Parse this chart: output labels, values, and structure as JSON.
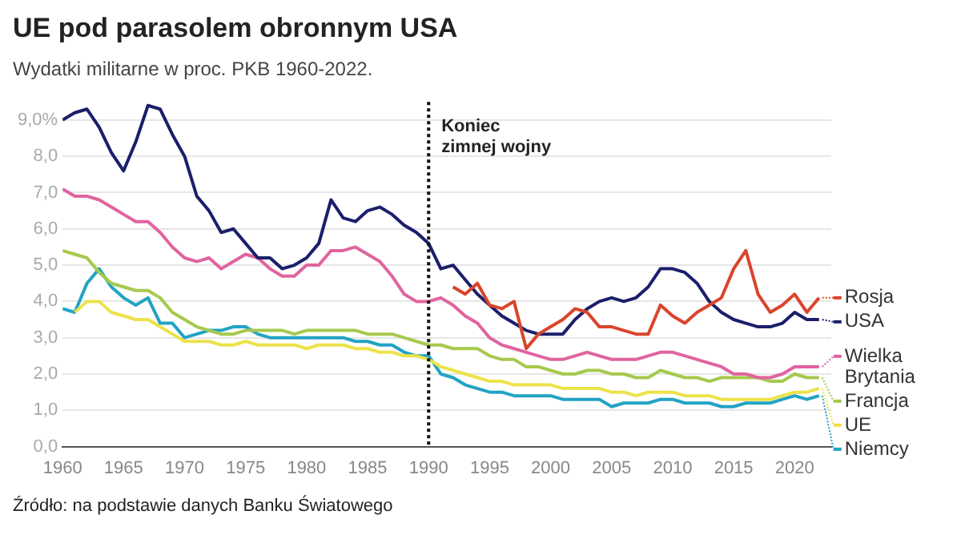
{
  "chart_data": {
    "type": "line",
    "title": "UE pod parasolem obronnym USA",
    "subtitle": "Wydatki militarne w proc. PKB 1960-2022.",
    "annotations": [
      "Źródło: na podstawie danych Banku Światowego"
    ],
    "x": [
      1960,
      1961,
      1962,
      1963,
      1964,
      1965,
      1966,
      1967,
      1968,
      1969,
      1970,
      1971,
      1972,
      1973,
      1974,
      1975,
      1976,
      1977,
      1978,
      1979,
      1980,
      1981,
      1982,
      1983,
      1984,
      1985,
      1986,
      1987,
      1988,
      1989,
      1990,
      1991,
      1992,
      1993,
      1994,
      1995,
      1996,
      1997,
      1998,
      1999,
      2000,
      2001,
      2002,
      2003,
      2004,
      2005,
      2006,
      2007,
      2008,
      2009,
      2010,
      2011,
      2012,
      2013,
      2014,
      2015,
      2016,
      2017,
      2018,
      2019,
      2020,
      2021,
      2022
    ],
    "series": [
      {
        "name": "Rosja",
        "color": "#d9452b",
        "values": [
          null,
          null,
          null,
          null,
          null,
          null,
          null,
          null,
          null,
          null,
          null,
          null,
          null,
          null,
          null,
          null,
          null,
          null,
          null,
          null,
          null,
          null,
          null,
          null,
          null,
          null,
          null,
          null,
          null,
          null,
          null,
          null,
          4.4,
          4.2,
          4.5,
          3.9,
          3.8,
          4.0,
          2.7,
          3.1,
          3.3,
          3.5,
          3.8,
          3.7,
          3.3,
          3.3,
          3.2,
          3.1,
          3.1,
          3.9,
          3.6,
          3.4,
          3.7,
          3.9,
          4.1,
          4.9,
          5.4,
          4.2,
          3.7,
          3.9,
          4.2,
          3.7,
          4.1
        ]
      },
      {
        "name": "USA",
        "color": "#1b1f6b",
        "values": [
          9.0,
          9.2,
          9.3,
          8.8,
          8.1,
          7.6,
          8.4,
          9.4,
          9.3,
          8.6,
          8.0,
          6.9,
          6.5,
          5.9,
          6.0,
          5.6,
          5.2,
          5.2,
          4.9,
          5.0,
          5.2,
          5.6,
          6.8,
          6.3,
          6.2,
          6.5,
          6.6,
          6.4,
          6.1,
          5.9,
          5.6,
          4.9,
          5.0,
          4.6,
          4.2,
          3.9,
          3.6,
          3.4,
          3.2,
          3.1,
          3.1,
          3.1,
          3.5,
          3.8,
          4.0,
          4.1,
          4.0,
          4.1,
          4.4,
          4.9,
          4.9,
          4.8,
          4.5,
          4.0,
          3.7,
          3.5,
          3.4,
          3.3,
          3.3,
          3.4,
          3.7,
          3.5,
          3.5
        ]
      },
      {
        "name": "Wielka Brytania",
        "color": "#e0649f",
        "values": [
          7.1,
          6.9,
          6.9,
          6.8,
          6.6,
          6.4,
          6.2,
          6.2,
          5.9,
          5.5,
          5.2,
          5.1,
          5.2,
          4.9,
          5.1,
          5.3,
          5.2,
          4.9,
          4.7,
          4.7,
          5.0,
          5.0,
          5.4,
          5.4,
          5.5,
          5.3,
          5.1,
          4.7,
          4.2,
          4.0,
          4.0,
          4.1,
          3.9,
          3.6,
          3.4,
          3.0,
          2.8,
          2.7,
          2.6,
          2.5,
          2.4,
          2.4,
          2.5,
          2.6,
          2.5,
          2.4,
          2.4,
          2.4,
          2.5,
          2.6,
          2.6,
          2.5,
          2.4,
          2.3,
          2.2,
          2.0,
          2.0,
          1.9,
          1.9,
          2.0,
          2.2,
          2.2,
          2.2
        ]
      },
      {
        "name": "Francja",
        "color": "#a6c94e",
        "values": [
          5.4,
          5.3,
          5.2,
          4.8,
          4.5,
          4.4,
          4.3,
          4.3,
          4.1,
          3.7,
          3.5,
          3.3,
          3.2,
          3.1,
          3.1,
          3.2,
          3.2,
          3.2,
          3.2,
          3.1,
          3.2,
          3.2,
          3.2,
          3.2,
          3.2,
          3.1,
          3.1,
          3.1,
          3.0,
          2.9,
          2.8,
          2.8,
          2.7,
          2.7,
          2.7,
          2.5,
          2.4,
          2.4,
          2.2,
          2.2,
          2.1,
          2.0,
          2.0,
          2.1,
          2.1,
          2.0,
          2.0,
          1.9,
          1.9,
          2.1,
          2.0,
          1.9,
          1.9,
          1.8,
          1.9,
          1.9,
          1.9,
          1.9,
          1.8,
          1.8,
          2.0,
          1.9,
          1.9
        ]
      },
      {
        "name": "UE",
        "color": "#ede24a",
        "values": [
          null,
          3.7,
          4.0,
          4.0,
          3.7,
          3.6,
          3.5,
          3.5,
          3.3,
          3.1,
          2.9,
          2.9,
          2.9,
          2.8,
          2.8,
          2.9,
          2.8,
          2.8,
          2.8,
          2.8,
          2.7,
          2.8,
          2.8,
          2.8,
          2.7,
          2.7,
          2.6,
          2.6,
          2.5,
          2.5,
          2.4,
          2.2,
          2.1,
          2.0,
          1.9,
          1.8,
          1.8,
          1.7,
          1.7,
          1.7,
          1.7,
          1.6,
          1.6,
          1.6,
          1.6,
          1.5,
          1.5,
          1.4,
          1.5,
          1.5,
          1.5,
          1.4,
          1.4,
          1.4,
          1.3,
          1.3,
          1.3,
          1.3,
          1.3,
          1.4,
          1.5,
          1.5,
          1.6
        ]
      },
      {
        "name": "Niemcy",
        "color": "#23a3c4",
        "values": [
          3.8,
          3.7,
          4.5,
          4.9,
          4.4,
          4.1,
          3.9,
          4.1,
          3.4,
          3.4,
          3.0,
          3.1,
          3.2,
          3.2,
          3.3,
          3.3,
          3.1,
          3.0,
          3.0,
          3.0,
          3.0,
          3.0,
          3.0,
          3.0,
          2.9,
          2.9,
          2.8,
          2.8,
          2.6,
          2.5,
          2.5,
          2.0,
          1.9,
          1.7,
          1.6,
          1.5,
          1.5,
          1.4,
          1.4,
          1.4,
          1.4,
          1.3,
          1.3,
          1.3,
          1.3,
          1.1,
          1.2,
          1.2,
          1.2,
          1.3,
          1.3,
          1.2,
          1.2,
          1.2,
          1.1,
          1.1,
          1.2,
          1.2,
          1.2,
          1.3,
          1.4,
          1.3,
          1.4
        ]
      }
    ],
    "xlim": [
      1960,
      2023
    ],
    "xticks": [
      1960,
      1965,
      1970,
      1975,
      1980,
      1985,
      1990,
      1995,
      2000,
      2005,
      2010,
      2015,
      2020
    ],
    "ylim": [
      0,
      9.5
    ],
    "yticks": [
      {
        "value": 0,
        "label": "0,0"
      },
      {
        "value": 1,
        "label": "1,0"
      },
      {
        "value": 2,
        "label": "2,0"
      },
      {
        "value": 3,
        "label": "3,0"
      },
      {
        "value": 4,
        "label": "4,0"
      },
      {
        "value": 5,
        "label": "5,0"
      },
      {
        "value": 6,
        "label": "6,0"
      },
      {
        "value": 7,
        "label": "7,0"
      },
      {
        "value": 8,
        "label": "8,0"
      },
      {
        "value": 9,
        "label": "9,0%"
      }
    ],
    "grid": "y",
    "legend": "right",
    "marker": "none",
    "line_style": "solid",
    "ref_lines": [
      {
        "axis": "x",
        "value": 1990,
        "label": "Koniec zimnej wojny",
        "color": "#111111",
        "line_style": "dotted"
      }
    ]
  }
}
